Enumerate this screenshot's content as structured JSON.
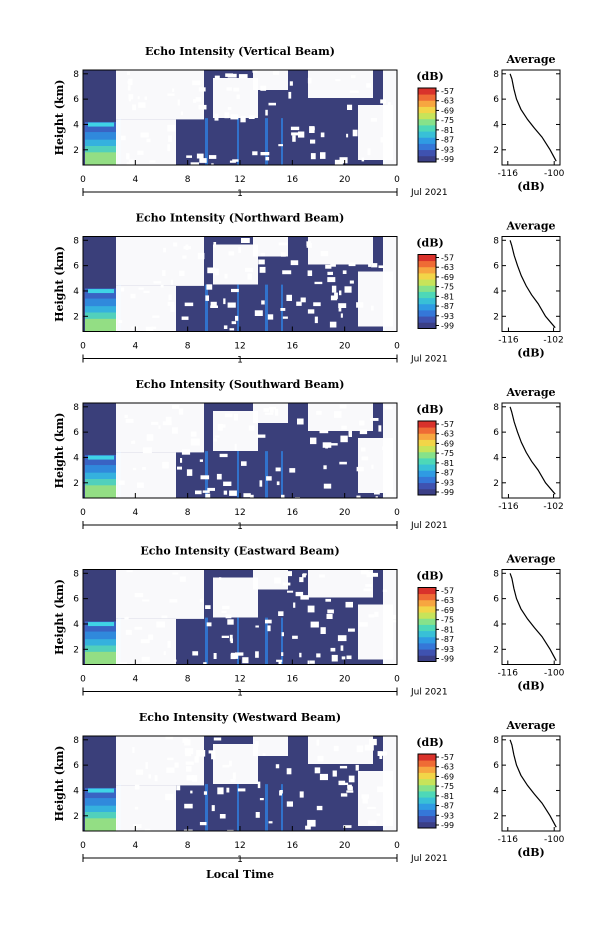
{
  "figure": {
    "bottom_label": "Local Time"
  },
  "colors": {
    "background": "#3a3f7a",
    "colorbar": [
      "#3b3f86",
      "#3f52b0",
      "#3577d8",
      "#2f9be3",
      "#38c0d7",
      "#4dd8b8",
      "#86e28a",
      "#c7e45a",
      "#f2d548",
      "#f7a640",
      "#ef6b35",
      "#d9322b"
    ],
    "trace": "#000000"
  },
  "chart_data": [
    {
      "type": "heatmap",
      "title": "Echo Intensity (Vertical Beam)",
      "ylabel": "Height (km)",
      "x_ticks": [
        "0",
        "4",
        "8",
        "12",
        "16",
        "20",
        "0"
      ],
      "date_label": "1",
      "date_suffix": "Jul 2021",
      "y_ticks": [
        "2",
        "4",
        "6",
        "8"
      ],
      "ylim": [
        0.8,
        8.3
      ],
      "colorbar": {
        "label": "(dB)",
        "ticks": [
          "-57",
          "-63",
          "-69",
          "-75",
          "-81",
          "-87",
          "-93",
          "-99"
        ]
      },
      "profile": {
        "title": "Average",
        "xlabel": "(dB)",
        "x_ticks": [
          "-116",
          "-100"
        ],
        "xlim": [
          -118,
          -98
        ],
        "y_ticks": [
          "2",
          "4",
          "6",
          "8"
        ],
        "ylim": [
          0.8,
          8.3
        ],
        "x": [
          -115.2,
          -114.6,
          -113.9,
          -113,
          -111.5,
          -109.2,
          -106.8,
          -104.2,
          -101.4,
          -99.3
        ],
        "y": [
          8.0,
          7.6,
          6.8,
          6.0,
          5.2,
          4.4,
          3.7,
          3.0,
          2.0,
          1.1
        ]
      }
    },
    {
      "type": "heatmap",
      "title": "Echo Intensity (Northward Beam)",
      "ylabel": "Height (km)",
      "x_ticks": [
        "0",
        "4",
        "8",
        "12",
        "16",
        "20",
        "0"
      ],
      "date_label": "1",
      "date_suffix": "Jul 2021",
      "y_ticks": [
        "2",
        "4",
        "6",
        "8"
      ],
      "ylim": [
        0.8,
        8.3
      ],
      "colorbar": {
        "label": "(dB)",
        "ticks": [
          "-57",
          "-63",
          "-69",
          "-75",
          "-81",
          "-87",
          "-93",
          "-99"
        ]
      },
      "profile": {
        "title": "Average",
        "xlabel": "(dB)",
        "x_ticks": [
          "-116",
          "-102"
        ],
        "xlim": [
          -118,
          -100
        ],
        "y_ticks": [
          "2",
          "4",
          "6",
          "8"
        ],
        "ylim": [
          0.8,
          8.3
        ],
        "x": [
          -115.5,
          -115,
          -114.2,
          -113.2,
          -112,
          -110.5,
          -108.8,
          -106.8,
          -104.5,
          -101.5
        ],
        "y": [
          8.0,
          7.6,
          6.8,
          6.0,
          5.2,
          4.4,
          3.7,
          3.0,
          2.0,
          1.1
        ]
      }
    },
    {
      "type": "heatmap",
      "title": "Echo Intensity (Southward Beam)",
      "ylabel": "Height (km)",
      "x_ticks": [
        "0",
        "4",
        "8",
        "12",
        "16",
        "20",
        "0"
      ],
      "date_label": "1",
      "date_suffix": "Jul 2021",
      "y_ticks": [
        "2",
        "4",
        "6",
        "8"
      ],
      "ylim": [
        0.8,
        8.3
      ],
      "colorbar": {
        "label": "(dB)",
        "ticks": [
          "-57",
          "-63",
          "-69",
          "-75",
          "-81",
          "-87",
          "-93",
          "-99"
        ]
      },
      "profile": {
        "title": "Average",
        "xlabel": "",
        "x_ticks": [
          "-116",
          "-102"
        ],
        "xlim": [
          -118,
          -100
        ],
        "y_ticks": [
          "2",
          "4",
          "6",
          "8"
        ],
        "ylim": [
          0.8,
          8.3
        ],
        "x": [
          -115.5,
          -115,
          -114.2,
          -113.2,
          -112,
          -110.5,
          -108.8,
          -106.8,
          -104.5,
          -101.5
        ],
        "y": [
          8.0,
          7.6,
          6.8,
          6.0,
          5.2,
          4.4,
          3.7,
          3.0,
          2.0,
          1.1
        ]
      }
    },
    {
      "type": "heatmap",
      "title": "Echo Intensity (Eastward Beam)",
      "ylabel": "Height (km)",
      "x_ticks": [
        "0",
        "4",
        "8",
        "12",
        "16",
        "20",
        "0"
      ],
      "date_label": "1",
      "date_suffix": "Jul 2021",
      "y_ticks": [
        "2",
        "4",
        "6",
        "8"
      ],
      "ylim": [
        0.8,
        8.3
      ],
      "colorbar": {
        "label": "(dB)",
        "ticks": [
          "-57",
          "-63",
          "-69",
          "-75",
          "-81",
          "-87",
          "-93",
          "-99"
        ]
      },
      "profile": {
        "title": "Average",
        "xlabel": "(dB)",
        "x_ticks": [
          "-116",
          "-100"
        ],
        "xlim": [
          -118,
          -98
        ],
        "y_ticks": [
          "2",
          "4",
          "6",
          "8"
        ],
        "ylim": [
          0.8,
          8.3
        ],
        "x": [
          -115.2,
          -114.6,
          -113.9,
          -113,
          -111.5,
          -109.2,
          -106.8,
          -104.2,
          -101.4,
          -99.3
        ],
        "y": [
          8.0,
          7.6,
          6.8,
          6.0,
          5.2,
          4.4,
          3.7,
          3.0,
          2.0,
          1.1
        ]
      }
    },
    {
      "type": "heatmap",
      "title": "Echo Intensity (Westward Beam)",
      "ylabel": "Height (km)",
      "x_ticks": [
        "0",
        "4",
        "8",
        "12",
        "16",
        "20",
        "0"
      ],
      "date_label": "1",
      "date_suffix": "Jul 2021",
      "y_ticks": [
        "2",
        "4",
        "6",
        "8"
      ],
      "ylim": [
        0.8,
        8.3
      ],
      "colorbar": {
        "label": "(dB)",
        "ticks": [
          "-57",
          "-63",
          "-69",
          "-75",
          "-81",
          "-87",
          "-93",
          "-99"
        ]
      },
      "profile": {
        "title": "Average",
        "xlabel": "(dB)",
        "x_ticks": [
          "-116",
          "-100"
        ],
        "xlim": [
          -118,
          -98
        ],
        "y_ticks": [
          "2",
          "4",
          "6",
          "8"
        ],
        "ylim": [
          0.8,
          8.3
        ],
        "x": [
          -115.2,
          -114.6,
          -113.9,
          -113,
          -111.5,
          -109.2,
          -106.8,
          -104.2,
          -101.4,
          -99.3
        ],
        "y": [
          8.0,
          7.6,
          6.8,
          6.0,
          5.2,
          4.4,
          3.7,
          3.0,
          2.0,
          1.1
        ]
      }
    }
  ]
}
